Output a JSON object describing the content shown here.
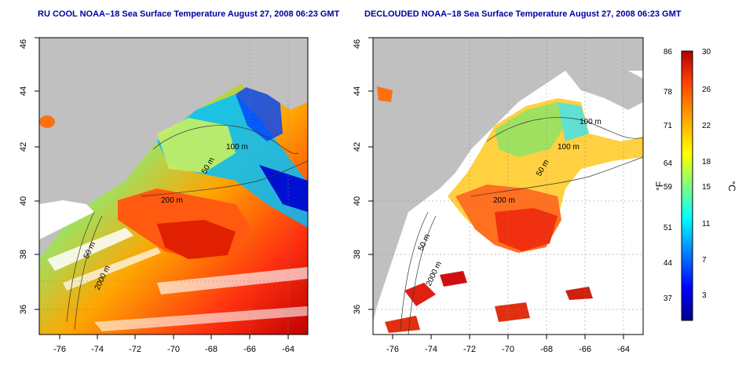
{
  "left_map": {
    "title": "RU COOL NOAA–18 Sea Surface Temperature August 27, 2008 06:23 GMT",
    "lat_ticks": [
      "46",
      "44",
      "42",
      "40",
      "38",
      "36"
    ],
    "lon_ticks": [
      "-76",
      "-74",
      "-72",
      "-70",
      "-68",
      "-66",
      "-64"
    ],
    "contours": [
      "100 m",
      "50 m",
      "200 m",
      "50 m",
      "2000 m"
    ]
  },
  "right_map": {
    "title": "DECLOUDED NOAA–18 Sea Surface Temperature August 27, 2008 06:23 GMT",
    "lat_ticks": [
      "46",
      "44",
      "42",
      "40",
      "38",
      "36"
    ],
    "lon_ticks": [
      "-76",
      "-74",
      "-72",
      "-70",
      "-68",
      "-66",
      "-64"
    ],
    "contours": [
      "100 m",
      "100 m",
      "50 m",
      "200 m",
      "50 m",
      "2000 m"
    ]
  },
  "colorbar": {
    "unit_f": "°F",
    "unit_c": "°C",
    "f_ticks": [
      "86",
      "78",
      "71",
      "64",
      "59",
      "51",
      "44",
      "37"
    ],
    "c_ticks": [
      "30",
      "26",
      "22",
      "18",
      "15",
      "11",
      "7",
      "3"
    ],
    "colors": [
      "#00008b",
      "#0000ff",
      "#0080ff",
      "#00ffff",
      "#80ff80",
      "#ffff00",
      "#ffa500",
      "#ff4500",
      "#b00000"
    ]
  }
}
